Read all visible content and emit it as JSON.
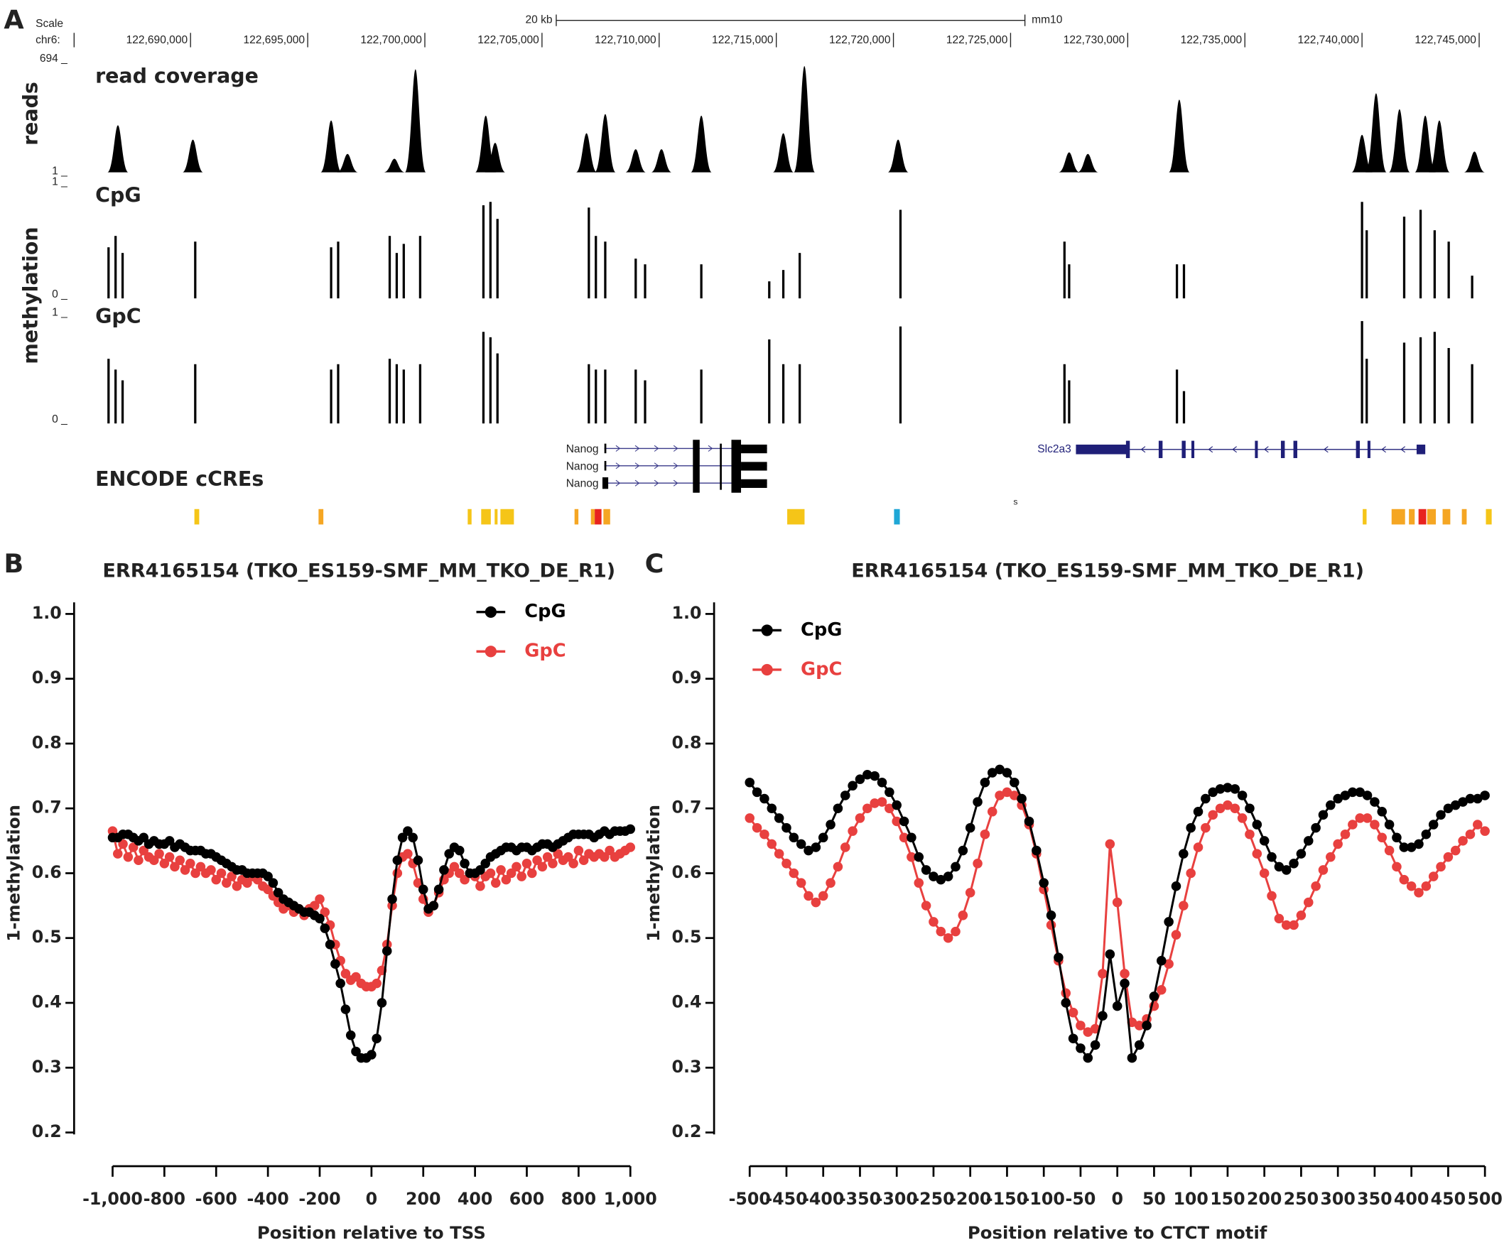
{
  "genome_browser": {
    "panel": "A",
    "scale_label": "Scale",
    "chrom_label": "chr6:",
    "scale_bar_label": "20 kb",
    "assembly": "mm10",
    "position_ticks": [
      {
        "value": 122690000,
        "label": "122,690,000"
      },
      {
        "value": 122695000,
        "label": "122,695,000"
      },
      {
        "value": 122700000,
        "label": "122,700,000"
      },
      {
        "value": 122705000,
        "label": "122,705,000"
      },
      {
        "value": 122710000,
        "label": "122,710,000"
      },
      {
        "value": 122715000,
        "label": "122,715,000"
      },
      {
        "value": 122720000,
        "label": "122,720,000"
      },
      {
        "value": 122725000,
        "label": "122,725,000"
      },
      {
        "value": 122730000,
        "label": "122,730,000"
      },
      {
        "value": 122735000,
        "label": "122,735,000"
      },
      {
        "value": 122740000,
        "label": "122,740,000"
      },
      {
        "value": 122745000,
        "label": "122,745,000"
      }
    ],
    "coverage": {
      "title": "read coverage",
      "axis_label": "reads",
      "ylim": [
        {
          "value": 1,
          "label": "1 _"
        },
        {
          "value": 694,
          "label": "694 _"
        }
      ],
      "positions": [
        122686900,
        122690100,
        122696000,
        122696700,
        122698700,
        122699600,
        122702600,
        122703000,
        122706900,
        122707700,
        122709000,
        122710100,
        122711800,
        122715300,
        122716200,
        122720200,
        122727500,
        122728300,
        122732200,
        122740000,
        122740600,
        122741600,
        122742700,
        122743300,
        122744800
      ],
      "values": [
        290,
        200,
        320,
        110,
        80,
        640,
        350,
        180,
        240,
        360,
        140,
        140,
        350,
        240,
        660,
        200,
        120,
        110,
        450,
        230,
        490,
        390,
        350,
        320,
        125
      ]
    },
    "methylation": {
      "axis_label": "methylation",
      "positions": [
        122686500,
        122686800,
        122687100,
        122690200,
        122696000,
        122696300,
        122698500,
        122698800,
        122699100,
        122699800,
        122702500,
        122702800,
        122703100,
        122707000,
        122707300,
        122707700,
        122709000,
        122709400,
        122711800,
        122714700,
        122715300,
        122716000,
        122720300,
        122727300,
        122727500,
        122732100,
        122732400,
        122740000,
        122740200,
        122741800,
        122742500,
        122743100,
        122743700,
        122744700
      ],
      "tracks": [
        {
          "name": "CpG",
          "ylim": [
            {
              "value": 0,
              "label": "0 _"
            },
            {
              "value": 1,
              "label": "1 _"
            }
          ],
          "values": [
            0.45,
            0.55,
            0.4,
            0.5,
            0.45,
            0.5,
            0.55,
            0.4,
            0.48,
            0.55,
            0.82,
            0.85,
            0.7,
            0.8,
            0.55,
            0.5,
            0.35,
            0.3,
            0.3,
            0.15,
            0.25,
            0.4,
            0.78,
            0.5,
            0.3,
            0.3,
            0.3,
            0.85,
            0.6,
            0.72,
            0.78,
            0.6,
            0.5,
            0.2
          ]
        },
        {
          "name": "GpC",
          "ylim": [
            {
              "value": 0,
              "label": "0 _"
            },
            {
              "value": 1,
              "label": "1 _"
            }
          ],
          "values": [
            0.6,
            0.5,
            0.4,
            0.55,
            0.5,
            0.55,
            0.6,
            0.55,
            0.5,
            0.55,
            0.85,
            0.8,
            0.65,
            0.55,
            0.5,
            0.5,
            0.5,
            0.4,
            0.5,
            0.78,
            0.55,
            0.55,
            0.9,
            0.55,
            0.4,
            0.5,
            0.3,
            0.95,
            0.6,
            0.75,
            0.8,
            0.85,
            0.7,
            0.55
          ]
        }
      ]
    },
    "gene_labels": [
      "Nanog",
      "Nanog",
      "Nanog",
      "Slc2a3"
    ],
    "ccre_title": "ENCODE cCREs",
    "stray_label": "s"
  },
  "chart_data": [
    {
      "type": "line",
      "panel": "B",
      "title": "ERR4165154  (TKO_ES159-SMF_MM_TKO_DE_R1)",
      "xlabel": "Position relative to TSS",
      "ylabel": "1-methylation",
      "x": [
        -1000,
        -980,
        -960,
        -940,
        -920,
        -900,
        -880,
        -860,
        -840,
        -820,
        -800,
        -780,
        -760,
        -740,
        -720,
        -700,
        -680,
        -660,
        -640,
        -620,
        -600,
        -580,
        -560,
        -540,
        -520,
        -500,
        -480,
        -460,
        -440,
        -420,
        -400,
        -380,
        -360,
        -340,
        -320,
        -300,
        -280,
        -260,
        -240,
        -220,
        -200,
        -180,
        -160,
        -140,
        -120,
        -100,
        -80,
        -60,
        -40,
        -20,
        0,
        20,
        40,
        60,
        80,
        100,
        120,
        140,
        160,
        180,
        200,
        220,
        240,
        260,
        280,
        300,
        320,
        340,
        360,
        380,
        400,
        420,
        440,
        460,
        480,
        500,
        520,
        540,
        560,
        580,
        600,
        620,
        640,
        660,
        680,
        700,
        720,
        740,
        760,
        780,
        800,
        820,
        840,
        860,
        880,
        900,
        920,
        940,
        960,
        980,
        1000
      ],
      "series": [
        {
          "name": "CpG",
          "color": "#000000",
          "values": [
            0.655,
            0.655,
            0.66,
            0.66,
            0.655,
            0.65,
            0.655,
            0.645,
            0.65,
            0.645,
            0.645,
            0.65,
            0.64,
            0.645,
            0.64,
            0.635,
            0.635,
            0.635,
            0.63,
            0.63,
            0.625,
            0.62,
            0.615,
            0.61,
            0.605,
            0.605,
            0.6,
            0.6,
            0.6,
            0.6,
            0.595,
            0.585,
            0.57,
            0.56,
            0.555,
            0.55,
            0.545,
            0.54,
            0.54,
            0.535,
            0.53,
            0.515,
            0.49,
            0.46,
            0.43,
            0.39,
            0.35,
            0.325,
            0.315,
            0.315,
            0.32,
            0.345,
            0.4,
            0.48,
            0.56,
            0.62,
            0.655,
            0.665,
            0.655,
            0.62,
            0.575,
            0.545,
            0.55,
            0.575,
            0.605,
            0.63,
            0.64,
            0.635,
            0.615,
            0.6,
            0.6,
            0.605,
            0.615,
            0.625,
            0.63,
            0.635,
            0.64,
            0.64,
            0.635,
            0.64,
            0.64,
            0.635,
            0.64,
            0.645,
            0.645,
            0.64,
            0.645,
            0.65,
            0.655,
            0.66,
            0.66,
            0.66,
            0.66,
            0.655,
            0.66,
            0.665,
            0.66,
            0.665,
            0.665,
            0.665,
            0.668
          ]
        },
        {
          "name": "GpC",
          "color": "#e8403f",
          "values": [
            0.665,
            0.63,
            0.645,
            0.625,
            0.64,
            0.62,
            0.635,
            0.625,
            0.62,
            0.63,
            0.615,
            0.625,
            0.61,
            0.62,
            0.605,
            0.615,
            0.6,
            0.61,
            0.6,
            0.605,
            0.59,
            0.6,
            0.585,
            0.595,
            0.58,
            0.59,
            0.585,
            0.595,
            0.59,
            0.58,
            0.575,
            0.565,
            0.555,
            0.545,
            0.55,
            0.54,
            0.545,
            0.535,
            0.545,
            0.55,
            0.56,
            0.54,
            0.52,
            0.49,
            0.465,
            0.445,
            0.435,
            0.44,
            0.43,
            0.425,
            0.425,
            0.43,
            0.45,
            0.49,
            0.55,
            0.6,
            0.625,
            0.63,
            0.615,
            0.585,
            0.56,
            0.54,
            0.55,
            0.57,
            0.59,
            0.6,
            0.61,
            0.6,
            0.59,
            0.6,
            0.595,
            0.58,
            0.595,
            0.6,
            0.585,
            0.605,
            0.59,
            0.6,
            0.61,
            0.595,
            0.615,
            0.6,
            0.62,
            0.61,
            0.625,
            0.615,
            0.63,
            0.62,
            0.625,
            0.615,
            0.635,
            0.62,
            0.63,
            0.625,
            0.63,
            0.625,
            0.635,
            0.625,
            0.63,
            0.635,
            0.64
          ]
        }
      ],
      "xlim": [
        -1000,
        1000
      ],
      "ylim": [
        0.2,
        1
      ],
      "xticks": [
        {
          "value": -1000,
          "label": "-1,000"
        },
        -800,
        -600,
        -400,
        -200,
        0,
        200,
        400,
        600,
        800,
        {
          "value": 1000,
          "label": "1,000"
        }
      ],
      "yticks": [
        0.2,
        0.3,
        0.4,
        0.5,
        0.6,
        0.7,
        0.8,
        0.9,
        {
          "value": 1,
          "label": "1.0"
        }
      ],
      "legend": "upper right"
    },
    {
      "type": "line",
      "panel": "C",
      "title": "ERR4165154  (TKO_ES159-SMF_MM_TKO_DE_R1)",
      "xlabel": "Position relative to CTCT motif",
      "ylabel": "1-methylation",
      "x": [
        -500,
        -490,
        -480,
        -470,
        -460,
        -450,
        -440,
        -430,
        -420,
        -410,
        -400,
        -390,
        -380,
        -370,
        -360,
        -350,
        -340,
        -330,
        -320,
        -310,
        -300,
        -290,
        -280,
        -270,
        -260,
        -250,
        -240,
        -230,
        -220,
        -210,
        -200,
        -190,
        -180,
        -170,
        -160,
        -150,
        -140,
        -130,
        -120,
        -110,
        -100,
        -90,
        -80,
        -70,
        -60,
        -50,
        -40,
        -30,
        -20,
        -10,
        0,
        10,
        20,
        30,
        40,
        50,
        60,
        70,
        80,
        90,
        100,
        110,
        120,
        130,
        140,
        150,
        160,
        170,
        180,
        190,
        200,
        210,
        220,
        230,
        240,
        250,
        260,
        270,
        280,
        290,
        300,
        310,
        320,
        330,
        340,
        350,
        360,
        370,
        380,
        390,
        400,
        410,
        420,
        430,
        440,
        450,
        460,
        470,
        480,
        490,
        500
      ],
      "series": [
        {
          "name": "CpG",
          "color": "#000000",
          "values": [
            0.74,
            0.725,
            0.715,
            0.7,
            0.685,
            0.67,
            0.655,
            0.645,
            0.635,
            0.64,
            0.655,
            0.675,
            0.7,
            0.72,
            0.735,
            0.745,
            0.752,
            0.75,
            0.74,
            0.725,
            0.705,
            0.68,
            0.655,
            0.625,
            0.605,
            0.595,
            0.59,
            0.595,
            0.61,
            0.635,
            0.67,
            0.71,
            0.74,
            0.755,
            0.76,
            0.755,
            0.74,
            0.715,
            0.68,
            0.635,
            0.585,
            0.535,
            0.47,
            0.4,
            0.345,
            0.33,
            0.315,
            0.335,
            0.38,
            0.475,
            0.395,
            0.43,
            0.315,
            0.335,
            0.365,
            0.41,
            0.465,
            0.525,
            0.58,
            0.63,
            0.67,
            0.695,
            0.715,
            0.725,
            0.73,
            0.732,
            0.73,
            0.72,
            0.7,
            0.675,
            0.65,
            0.625,
            0.61,
            0.605,
            0.615,
            0.63,
            0.65,
            0.67,
            0.69,
            0.705,
            0.715,
            0.72,
            0.725,
            0.725,
            0.72,
            0.71,
            0.695,
            0.675,
            0.655,
            0.64,
            0.64,
            0.645,
            0.66,
            0.675,
            0.69,
            0.7,
            0.705,
            0.71,
            0.715,
            0.715,
            0.72
          ]
        },
        {
          "name": "GpC",
          "color": "#e8403f",
          "values": [
            0.685,
            0.67,
            0.66,
            0.645,
            0.63,
            0.615,
            0.6,
            0.585,
            0.565,
            0.555,
            0.565,
            0.585,
            0.61,
            0.64,
            0.665,
            0.685,
            0.7,
            0.708,
            0.71,
            0.7,
            0.68,
            0.655,
            0.625,
            0.585,
            0.55,
            0.525,
            0.51,
            0.5,
            0.51,
            0.535,
            0.57,
            0.615,
            0.66,
            0.695,
            0.72,
            0.725,
            0.72,
            0.705,
            0.675,
            0.63,
            0.575,
            0.52,
            0.465,
            0.415,
            0.385,
            0.365,
            0.355,
            0.36,
            0.445,
            0.645,
            0.555,
            0.445,
            0.37,
            0.365,
            0.375,
            0.395,
            0.42,
            0.46,
            0.505,
            0.55,
            0.6,
            0.64,
            0.67,
            0.69,
            0.7,
            0.705,
            0.7,
            0.685,
            0.66,
            0.63,
            0.6,
            0.565,
            0.53,
            0.52,
            0.52,
            0.535,
            0.555,
            0.58,
            0.605,
            0.625,
            0.645,
            0.66,
            0.675,
            0.685,
            0.685,
            0.675,
            0.655,
            0.635,
            0.61,
            0.59,
            0.58,
            0.57,
            0.58,
            0.595,
            0.61,
            0.625,
            0.635,
            0.65,
            0.66,
            0.675,
            0.665
          ]
        }
      ],
      "xlim": [
        -500,
        500
      ],
      "ylim": [
        0.2,
        1
      ],
      "xticks": [
        -500,
        -450,
        -400,
        -350,
        -300,
        -250,
        -200,
        -150,
        -100,
        -50,
        0,
        50,
        100,
        150,
        200,
        250,
        300,
        350,
        400,
        450,
        500
      ],
      "yticks": [
        0.2,
        0.3,
        0.4,
        0.5,
        0.6,
        0.7,
        0.8,
        0.9,
        {
          "value": 1,
          "label": "1.0"
        }
      ],
      "legend": "upper left"
    }
  ]
}
